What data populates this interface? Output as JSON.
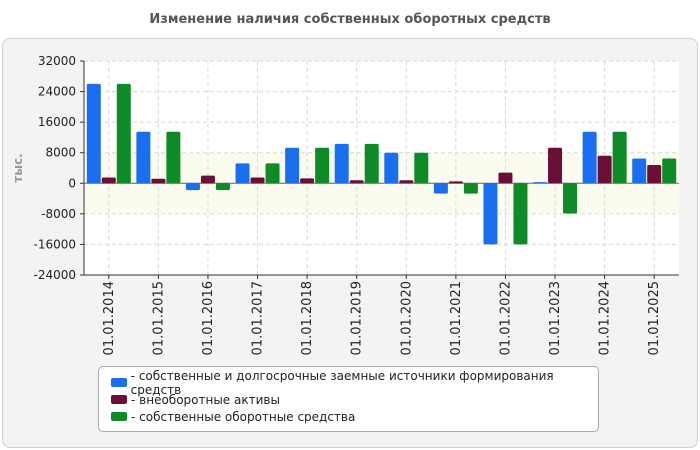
{
  "chart_title": "Изменение наличия собственных оборотных средств",
  "chart_data": {
    "type": "bar",
    "title": "Изменение наличия собственных оборотных средств",
    "ylabel": "тыс.",
    "xlabel": "",
    "ylim": [
      -24000,
      32000
    ],
    "yticks": [
      32000,
      24000,
      16000,
      8000,
      0,
      -8000,
      -16000,
      -24000
    ],
    "categories": [
      "01.01.2014",
      "01.01.2015",
      "01.01.2016",
      "01.01.2017",
      "01.01.2018",
      "01.01.2019",
      "01.01.2020",
      "01.01.2021",
      "01.01.2022",
      "01.01.2023",
      "01.01.2024",
      "01.01.2025"
    ],
    "series": [
      {
        "name": "собственные и долгосрочные заемные источники формирования средств",
        "color": "#1a6ff0",
        "values": [
          26000,
          13500,
          -1800,
          5200,
          9300,
          10300,
          8000,
          -2700,
          -16000,
          300,
          13500,
          6500
        ]
      },
      {
        "name": "внеоборотные активы",
        "color": "#6b0f37",
        "values": [
          1500,
          1200,
          2000,
          1500,
          1300,
          800,
          800,
          500,
          2800,
          9300,
          7200,
          4800
        ]
      },
      {
        "name": "собственные оборотные средства",
        "color": "#0e8a26",
        "values": [
          26000,
          13500,
          -1800,
          5200,
          9300,
          10300,
          8000,
          -2700,
          -16000,
          -7900,
          13500,
          6500
        ]
      }
    ],
    "grid": true,
    "legend_position": "bottom"
  },
  "legend": {
    "items": [
      {
        "label": "- собственные и долгосрочные заемные источники формирования средств",
        "color": "#1a6ff0"
      },
      {
        "label": "- внеоборотные активы",
        "color": "#6b0f37"
      },
      {
        "label": "- собственные оборотные средства",
        "color": "#0e8a26"
      }
    ]
  }
}
